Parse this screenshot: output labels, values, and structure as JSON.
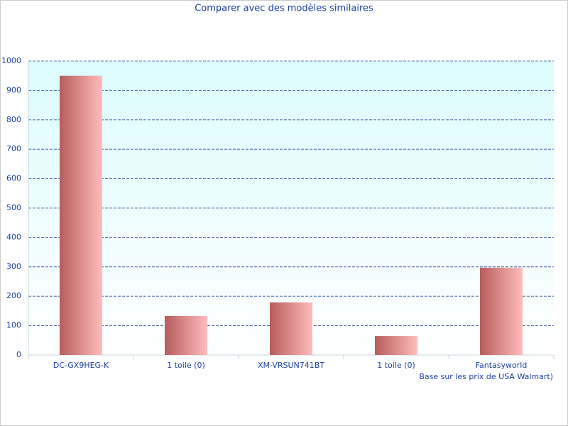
{
  "chart_data": {
    "type": "bar",
    "title": "Comparer avec des modèles similaires",
    "categories": [
      "DC-GX9HEG-K",
      "1 toile (0)",
      "XM-VRSUN741BT",
      "1 toile (0)",
      "Fantasyworld"
    ],
    "values": [
      950,
      133,
      179,
      65,
      297
    ],
    "color": "#b85c5c",
    "ylim": [
      0,
      1000
    ],
    "yticks": [
      0,
      100,
      200,
      300,
      400,
      500,
      600,
      700,
      800,
      900,
      1000
    ],
    "grid": true,
    "note": "Base sur les prix de USA Walmart)"
  }
}
